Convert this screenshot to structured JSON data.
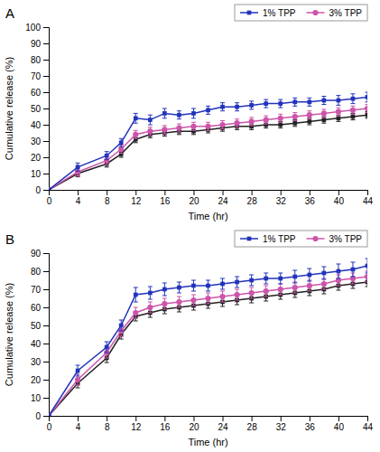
{
  "chart_data": [
    {
      "type": "line",
      "title": "A",
      "xlabel": "Time (hr)",
      "ylabel": "Cumulative release (%)",
      "x": [
        0,
        4,
        8,
        10,
        12,
        14,
        16,
        18,
        20,
        22,
        24,
        26,
        28,
        30,
        32,
        34,
        36,
        38,
        40,
        42,
        44
      ],
      "series": [
        {
          "color": "#222222",
          "marker": "square",
          "values": [
            0,
            10,
            16,
            22,
            31,
            34,
            35,
            36,
            36,
            37,
            38,
            39,
            39,
            40,
            40,
            41,
            42,
            43,
            44,
            45,
            46
          ],
          "errors": [
            0,
            2,
            2,
            2,
            2,
            2,
            2,
            2,
            2,
            2,
            2,
            2,
            2,
            2,
            2,
            2,
            2,
            2,
            2,
            2,
            2
          ]
        },
        {
          "name": "3% TPP",
          "color": "#CC55AA",
          "marker": "circle",
          "values": [
            0,
            11,
            18,
            25,
            34,
            36,
            37,
            38,
            39,
            39,
            40,
            41,
            42,
            43,
            44,
            45,
            46,
            47,
            48,
            49,
            50
          ],
          "errors": [
            0,
            2.5,
            2.5,
            2.5,
            2.5,
            2.5,
            2.5,
            2.5,
            2.5,
            2.5,
            2.5,
            2.5,
            2.5,
            2.5,
            2.5,
            2.5,
            2.5,
            2.5,
            2.5,
            2.5,
            2.5
          ]
        },
        {
          "name": "1% TPP",
          "color": "#2233BB",
          "marker": "square",
          "values": [
            0,
            14,
            21,
            29,
            44,
            43,
            47,
            46,
            47,
            49,
            51,
            51,
            52,
            53,
            53,
            54,
            54,
            55,
            55,
            56,
            57
          ],
          "errors": [
            0,
            2.5,
            2.5,
            2.5,
            3,
            3,
            3,
            2.5,
            3,
            2.5,
            2.5,
            2.5,
            2.5,
            2.5,
            2.5,
            2.5,
            2.5,
            2.5,
            3,
            3,
            3
          ]
        }
      ],
      "xlim": [
        0,
        44
      ],
      "xticks": [
        0,
        4,
        8,
        12,
        16,
        20,
        24,
        28,
        32,
        36,
        40,
        44
      ],
      "ylim": [
        0,
        100
      ],
      "yticks": [
        0,
        10,
        20,
        30,
        40,
        50,
        60,
        70,
        80,
        90,
        100
      ],
      "grid": false,
      "legend": "upper right"
    },
    {
      "type": "line",
      "title": "B",
      "xlabel": "Time (hr)",
      "ylabel": "Cumulative release (%)",
      "x": [
        0,
        4,
        8,
        10,
        12,
        14,
        16,
        18,
        20,
        22,
        24,
        26,
        28,
        30,
        32,
        34,
        36,
        38,
        40,
        42,
        44
      ],
      "series": [
        {
          "color": "#222222",
          "marker": "square",
          "values": [
            0,
            18,
            32,
            45,
            55,
            57,
            59,
            60,
            61,
            62,
            63,
            64,
            65,
            66,
            67,
            68,
            69,
            70,
            72,
            73,
            74
          ],
          "errors": [
            0,
            2.5,
            2.5,
            2.5,
            2.5,
            2.5,
            2.5,
            2.5,
            2.5,
            2.5,
            2.5,
            2.5,
            2.5,
            2.5,
            2.5,
            2.5,
            2.5,
            2.5,
            2.5,
            2.5,
            2.5
          ]
        },
        {
          "name": "3% TPP",
          "color": "#CC55AA",
          "marker": "circle",
          "values": [
            0,
            20,
            35,
            47,
            57,
            60,
            62,
            63,
            64,
            65,
            66,
            67,
            68,
            69,
            70,
            71,
            72,
            73,
            75,
            76,
            77
          ],
          "errors": [
            0,
            3,
            3,
            3,
            3,
            3,
            3,
            3,
            3,
            3,
            3,
            3,
            3,
            3,
            3,
            3,
            3,
            3,
            3,
            3,
            3
          ]
        },
        {
          "name": "1% TPP",
          "color": "#2233BB",
          "marker": "square",
          "values": [
            0,
            25,
            38,
            50,
            67,
            68,
            70,
            71,
            72,
            72,
            73,
            74,
            75,
            76,
            76,
            77,
            78,
            79,
            80,
            81,
            83
          ],
          "errors": [
            0,
            3,
            3,
            3,
            4,
            3.5,
            3.5,
            3,
            3,
            3,
            3,
            3,
            3,
            3,
            3,
            3.5,
            3.5,
            3.5,
            4,
            4,
            4
          ]
        }
      ],
      "xlim": [
        0,
        44
      ],
      "xticks": [
        0,
        4,
        8,
        12,
        16,
        20,
        24,
        28,
        32,
        36,
        40,
        44
      ],
      "ylim": [
        0,
        90
      ],
      "yticks": [
        0,
        10,
        20,
        30,
        40,
        50,
        60,
        70,
        80,
        90
      ],
      "grid": false,
      "legend": "upper right"
    }
  ]
}
